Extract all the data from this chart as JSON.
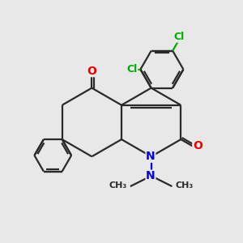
{
  "background_color": "#e8e8e8",
  "bond_color": "#2a2a2a",
  "bond_width": 1.6,
  "N_color": "#0000ee",
  "O_color": "#ee0000",
  "Cl_color": "#00aa00",
  "C_color": "#2a2a2a",
  "figsize": [
    3.0,
    3.0
  ],
  "dpi": 100,
  "xlim": [
    1.0,
    9.0
  ],
  "ylim": [
    1.0,
    9.0
  ]
}
